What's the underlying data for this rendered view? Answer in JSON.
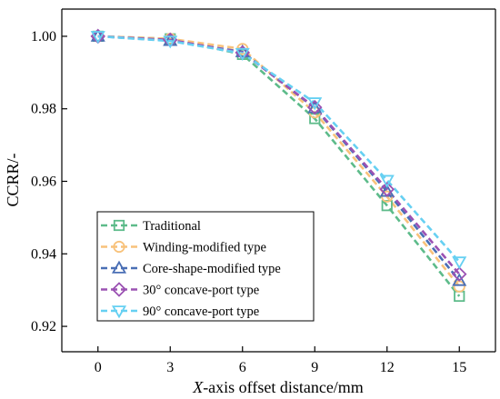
{
  "chart_data": {
    "type": "line",
    "x": [
      0,
      3,
      6,
      9,
      12,
      15
    ],
    "xticks": [
      "0",
      "3",
      "6",
      "9",
      "12",
      "15"
    ],
    "yticks": [
      "0.92",
      "0.94",
      "0.96",
      "0.98",
      "1.00"
    ],
    "ytick_values": [
      0.92,
      0.94,
      0.96,
      0.98,
      1.0
    ],
    "xlim": [
      -1.5,
      16.5
    ],
    "ylim": [
      0.913,
      1.0075
    ],
    "xlabel_italic": "X",
    "xlabel_rest": "-axis offset distance/mm",
    "ylabel": "CCRR/-",
    "grid": false,
    "legend_position": "bottom-left",
    "series": [
      {
        "name": "Traditional",
        "color": "#5dbb8a",
        "marker": "square",
        "values": [
          1.0,
          0.9993,
          0.995,
          0.9773,
          0.9533,
          0.9283
        ]
      },
      {
        "name": "Winding-modified type",
        "color": "#f8c27b",
        "marker": "circle",
        "values": [
          1.0,
          0.9993,
          0.9965,
          0.979,
          0.9558,
          0.931
        ]
      },
      {
        "name": "Core-shape-modified type",
        "color": "#4a6fb5",
        "marker": "triangle-up",
        "values": [
          1.0,
          0.9988,
          0.9957,
          0.9802,
          0.9572,
          0.9326
        ]
      },
      {
        "name": "30° concave-port type",
        "color": "#9b52b3",
        "marker": "diamond",
        "values": [
          1.0,
          0.999,
          0.9955,
          0.9804,
          0.9578,
          0.9344
        ]
      },
      {
        "name": "90° concave-port type",
        "color": "#66d0f2",
        "marker": "triangle-down",
        "values": [
          1.0,
          0.9987,
          0.9953,
          0.9817,
          0.9603,
          0.9378
        ]
      }
    ]
  }
}
